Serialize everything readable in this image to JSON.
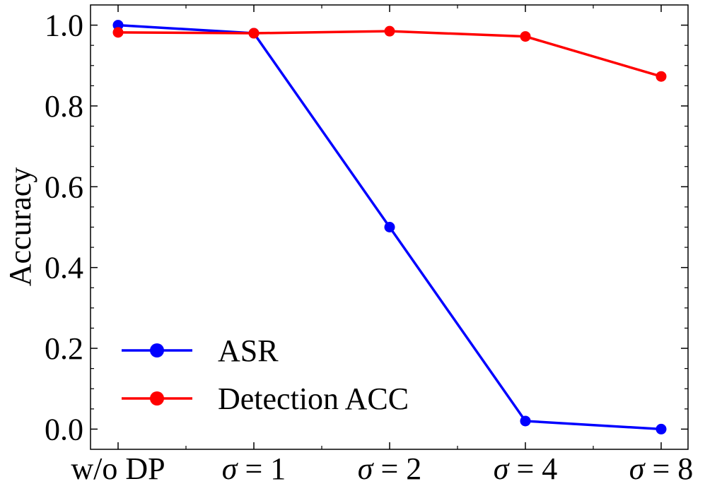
{
  "chart_data": {
    "type": "line",
    "title": "",
    "xlabel": "",
    "ylabel": "Accuracy",
    "categories": [
      "w/o DP",
      "σ = 1",
      "σ = 2",
      "σ = 4",
      "σ = 8"
    ],
    "ylim": [
      -0.05,
      1.05
    ],
    "yticks": [
      0.0,
      0.2,
      0.4,
      0.6,
      0.8,
      1.0
    ],
    "ytick_labels": [
      "0.0",
      "0.2",
      "0.4",
      "0.6",
      "0.8",
      "1.0"
    ],
    "grid": false,
    "legend_position": "bottom-left",
    "series": [
      {
        "name": "ASR",
        "color": "#0000ff",
        "values": [
          1.0,
          0.98,
          0.5,
          0.02,
          0.0
        ]
      },
      {
        "name": "Detection ACC",
        "color": "#ff0000",
        "values": [
          0.982,
          0.98,
          0.985,
          0.972,
          0.873
        ]
      }
    ]
  }
}
